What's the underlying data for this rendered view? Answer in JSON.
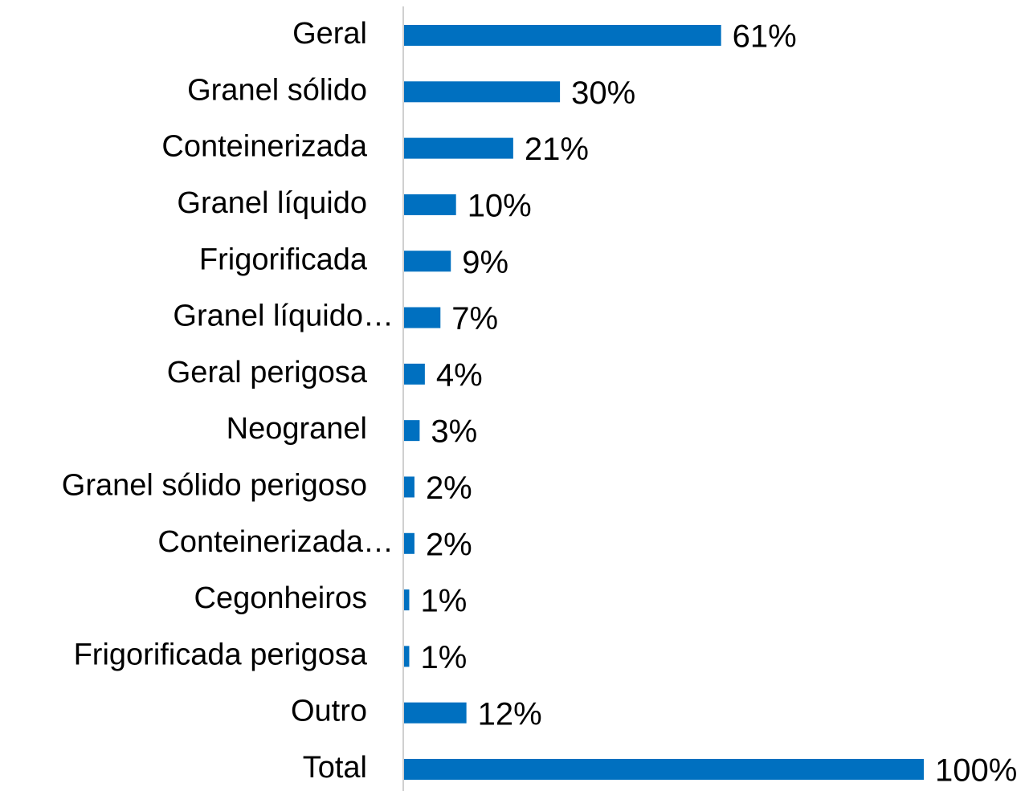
{
  "chart_data": {
    "type": "barh",
    "categories": [
      "Geral",
      "Granel sólido",
      "Conteinerizada",
      "Granel líquido",
      "Frigorificada",
      "Granel líquido…",
      "Geral perigosa",
      "Neogranel",
      "Granel sólido perigoso",
      "Conteinerizada…",
      "Cegonheiros",
      "Frigorificada perigosa",
      "Outro",
      "Total"
    ],
    "values": [
      61,
      30,
      21,
      10,
      9,
      7,
      4,
      3,
      2,
      2,
      1,
      1,
      12,
      100
    ],
    "value_labels": [
      "61%",
      "30%",
      "21%",
      "10%",
      "9%",
      "7%",
      "4%",
      "3%",
      "2%",
      "2%",
      "1%",
      "1%",
      "12%",
      "100%"
    ],
    "color": "#0070c0"
  }
}
